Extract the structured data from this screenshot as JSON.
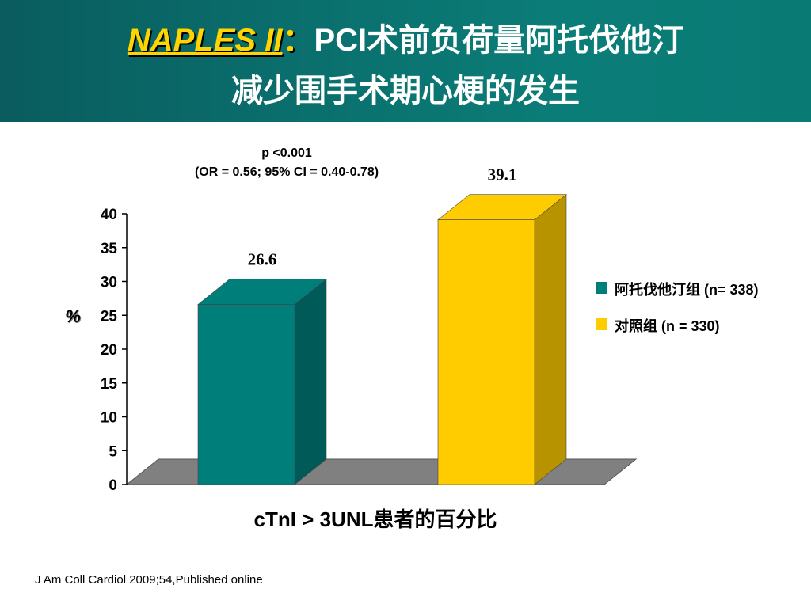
{
  "slide": {
    "title_trial": "NAPLES II",
    "title_colon": "：",
    "title_rest": "PCI术前负荷量阿托伐他汀",
    "title_line2": "减少围手术期心梗的发生",
    "citation": "J Am Coll Cardiol 2009;54,Published online"
  },
  "chart_data": {
    "type": "bar",
    "style": "3d",
    "categories": [
      "阿托伐他汀组 (n= 338)",
      "对照组 (n = 330)"
    ],
    "values": [
      26.6,
      39.1
    ],
    "value_labels": [
      "26.6",
      "39.1"
    ],
    "colors": [
      "#007f7a",
      "#ffcc00"
    ],
    "ylabel": "%",
    "xlabel": "cTnI > 3UNL患者的百分比",
    "ylim": [
      0,
      40
    ],
    "yticks": [
      0,
      5,
      10,
      15,
      20,
      25,
      30,
      35,
      40
    ],
    "annotation_line1": "p <0.001",
    "annotation_line2": "(OR = 0.56; 95% CI = 0.40-0.78)",
    "legend": [
      {
        "label": "阿托伐他汀组 (n= 338)",
        "color": "#007f7a"
      },
      {
        "label": "对照组 (n = 330)",
        "color": "#ffcc00"
      }
    ],
    "legend_position": "right",
    "grid": false
  }
}
